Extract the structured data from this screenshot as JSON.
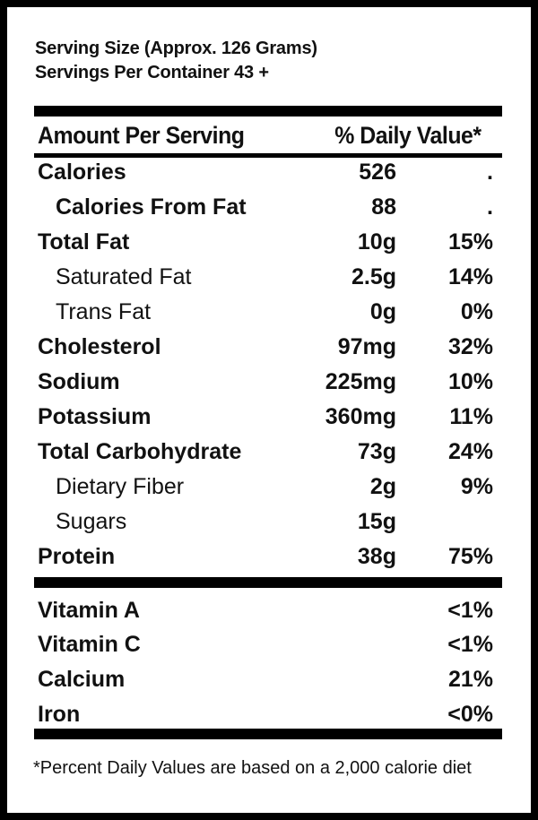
{
  "serving": {
    "size": "Serving Size  (Approx. 126 Grams)",
    "per_container": "Servings Per Container 43 +"
  },
  "header": {
    "amount_label": "Amount Per Serving",
    "dv_label": "% Daily Value*"
  },
  "nutrients": [
    {
      "name": "Calories",
      "amount": "526",
      "dv": "."
    },
    {
      "name": "Calories From Fat",
      "amount": "88",
      "dv": "."
    },
    {
      "name": "Total Fat",
      "amount": "10g",
      "dv": "15%"
    },
    {
      "name": "Saturated Fat",
      "amount": "2.5g",
      "dv": "14%"
    },
    {
      "name": "Trans Fat",
      "amount": "0g",
      "dv": "0%"
    },
    {
      "name": "Cholesterol",
      "amount": "97mg",
      "dv": "32%"
    },
    {
      "name": "Sodium",
      "amount": "225mg",
      "dv": "10%"
    },
    {
      "name": "Potassium",
      "amount": "360mg",
      "dv": "11%"
    },
    {
      "name": "Total Carbohydrate",
      "amount": "73g",
      "dv": "24%"
    },
    {
      "name": "Dietary Fiber",
      "amount": "2g",
      "dv": "9%"
    },
    {
      "name": "Sugars",
      "amount": "15g",
      "dv": ""
    },
    {
      "name": "Protein",
      "amount": "38g",
      "dv": "75%"
    }
  ],
  "vitamins": [
    {
      "name": "Vitamin A",
      "dv": "<1%"
    },
    {
      "name": "Vitamin C",
      "dv": "<1%"
    },
    {
      "name": "Calcium",
      "dv": "21%"
    },
    {
      "name": "Iron",
      "dv": "<0%"
    }
  ],
  "footnote": "*Percent Daily Values are based on a 2,000 calorie diet"
}
